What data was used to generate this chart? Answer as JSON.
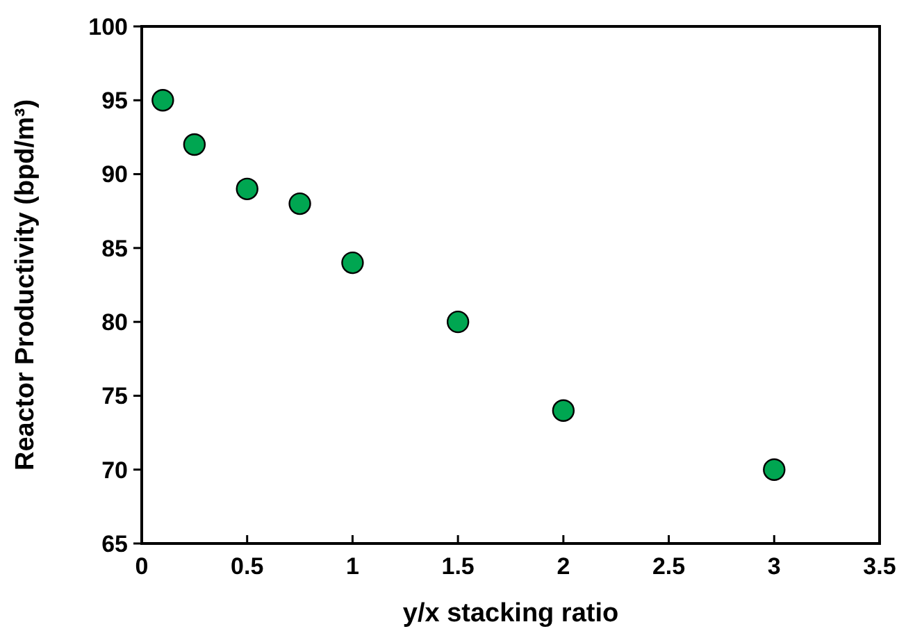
{
  "chart_data": {
    "type": "scatter",
    "xlabel": "y/x stacking ratio",
    "ylabel": "Reactor Productivity (bpd/m³)",
    "x": [
      0.1,
      0.25,
      0.5,
      0.75,
      1,
      1.5,
      2,
      3
    ],
    "series": [
      {
        "color": "#00a651",
        "values": [
          95,
          92,
          89,
          88,
          84,
          80,
          74,
          70
        ]
      }
    ],
    "xlim": [
      0,
      3.5
    ],
    "xticks": [
      0,
      0.5,
      1,
      1.5,
      2,
      2.5,
      3,
      3.5
    ],
    "ylim": [
      65,
      100
    ],
    "yticks": [
      65,
      70,
      75,
      80,
      85,
      90,
      95,
      100
    ],
    "grid": false,
    "marker": "circle"
  }
}
